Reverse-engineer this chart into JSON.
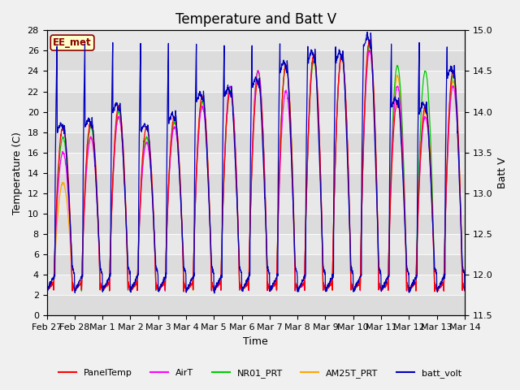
{
  "title": "Temperature and Batt V",
  "xlabel": "Time",
  "ylabel_left": "Temperature (C)",
  "ylabel_right": "Batt V",
  "ylim_left": [
    0,
    28
  ],
  "ylim_right": [
    11.5,
    15.0
  ],
  "yticks_left": [
    0,
    2,
    4,
    6,
    8,
    10,
    12,
    14,
    16,
    18,
    20,
    22,
    24,
    26,
    28
  ],
  "yticks_right": [
    11.5,
    12.0,
    12.5,
    13.0,
    13.5,
    14.0,
    14.5,
    15.0
  ],
  "x_tick_labels": [
    "Feb 27",
    "Feb 28",
    "Mar 1",
    "Mar 2",
    "Mar 3",
    "Mar 4",
    "Mar 5",
    "Mar 6",
    "Mar 7",
    "Mar 8",
    "Mar 9",
    "Mar 10",
    "Mar 11",
    "Mar 12",
    "Mar 13",
    "Mar 14"
  ],
  "annotation_text": "EE_met",
  "annotation_color": "#8B0000",
  "annotation_bg": "#FFFFCC",
  "line_colors": {
    "PanelTemp": "#FF0000",
    "AirT": "#FF00FF",
    "NR01_PRT": "#00CC00",
    "AM25T_PRT": "#FFA500",
    "batt_volt": "#0000BB"
  },
  "bg_color": "#F0F0F0",
  "plot_bg_color": "#E8E8E8",
  "band_colors": [
    "#DCDCDC",
    "#E8E8E8"
  ],
  "title_fontsize": 12,
  "label_fontsize": 9,
  "tick_fontsize": 8,
  "n_days": 15,
  "peaks_panel": [
    18.5,
    19.0,
    20.5,
    18.5,
    19.5,
    21.5,
    22.0,
    23.0,
    24.5,
    25.5,
    25.5,
    27.0,
    21.0,
    20.5,
    24.0
  ],
  "peaks_air": [
    16.0,
    17.5,
    19.5,
    17.0,
    18.5,
    20.5,
    22.5,
    24.0,
    22.0,
    25.5,
    25.5,
    26.0,
    22.5,
    19.5,
    22.5
  ],
  "peaks_nr01": [
    17.5,
    18.5,
    20.0,
    17.5,
    19.0,
    21.0,
    22.0,
    24.0,
    24.5,
    25.0,
    25.5,
    26.5,
    24.5,
    24.0,
    23.5
  ],
  "peaks_am25": [
    13.0,
    17.5,
    19.5,
    17.5,
    19.0,
    21.0,
    22.0,
    24.0,
    24.5,
    25.0,
    25.5,
    26.5,
    23.5,
    20.0,
    23.0
  ],
  "batt_night_min": 11.8,
  "batt_day_max": 14.95,
  "temp_night_min": 2.5
}
